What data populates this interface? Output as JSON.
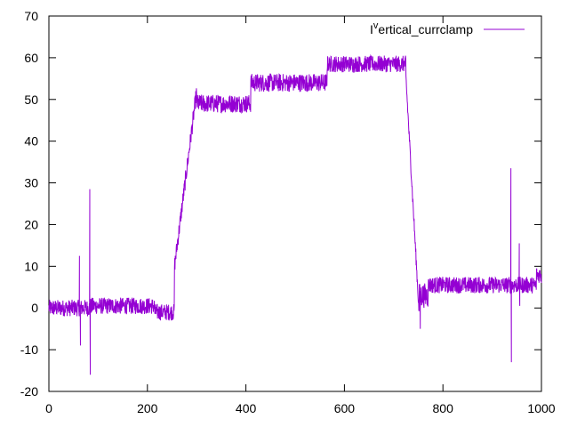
{
  "chart_data": {
    "type": "line",
    "title": "",
    "xlabel": "",
    "ylabel": "",
    "xlim": [
      0,
      1000
    ],
    "ylim": [
      -20,
      70
    ],
    "x_ticks": [
      0,
      200,
      400,
      600,
      800,
      1000
    ],
    "y_ticks": [
      -20,
      -10,
      0,
      10,
      20,
      30,
      40,
      50,
      60,
      70
    ],
    "x_tick_labels": [
      "0",
      "200",
      "400",
      "600",
      "800",
      "1000"
    ],
    "y_tick_labels": [
      "-20",
      "-10",
      "0",
      "10",
      "20",
      "30",
      "40",
      "50",
      "60",
      "70"
    ],
    "grid": false,
    "legend_position": "top-right",
    "series": [
      {
        "name": "I",
        "name_superscript": "v",
        "name_suffix": "ertical_currclamp",
        "color": "#9400d3",
        "segments": [
          {
            "x0": 0,
            "x1": 60,
            "center": 0,
            "amp": 2
          },
          {
            "x0": 60,
            "x1": 85,
            "center": 0,
            "amp": 2
          },
          {
            "x0": 85,
            "x1": 215,
            "center": 0.5,
            "amp": 2
          },
          {
            "x0": 215,
            "x1": 255,
            "center": -1,
            "amp": 2
          },
          {
            "x0": 255,
            "x1": 300,
            "ramp_from": 10,
            "ramp_to": 52,
            "amp": 2
          },
          {
            "x0": 300,
            "x1": 410,
            "center": 49,
            "amp": 2.2
          },
          {
            "x0": 410,
            "x1": 565,
            "center": 54,
            "amp": 2.2
          },
          {
            "x0": 565,
            "x1": 725,
            "center": 58.5,
            "amp": 2
          },
          {
            "x0": 725,
            "x1": 752,
            "ramp_from": 55,
            "ramp_to": -2,
            "amp": 1.5
          },
          {
            "x0": 752,
            "x1": 770,
            "center": 3,
            "amp": 3
          },
          {
            "x0": 770,
            "x1": 990,
            "center": 5.5,
            "amp": 2
          },
          {
            "x0": 990,
            "x1": 1000,
            "center": 8,
            "amp": 2
          }
        ],
        "spikes": [
          {
            "x": 62,
            "y": 12.5
          },
          {
            "x": 64,
            "y": -9
          },
          {
            "x": 83,
            "y": 28.5
          },
          {
            "x": 84,
            "y": -16
          },
          {
            "x": 754,
            "y": -5
          },
          {
            "x": 938,
            "y": 33.5
          },
          {
            "x": 939,
            "y": -13
          },
          {
            "x": 955,
            "y": 15.5
          },
          {
            "x": 956,
            "y": 0.5
          }
        ]
      }
    ]
  }
}
